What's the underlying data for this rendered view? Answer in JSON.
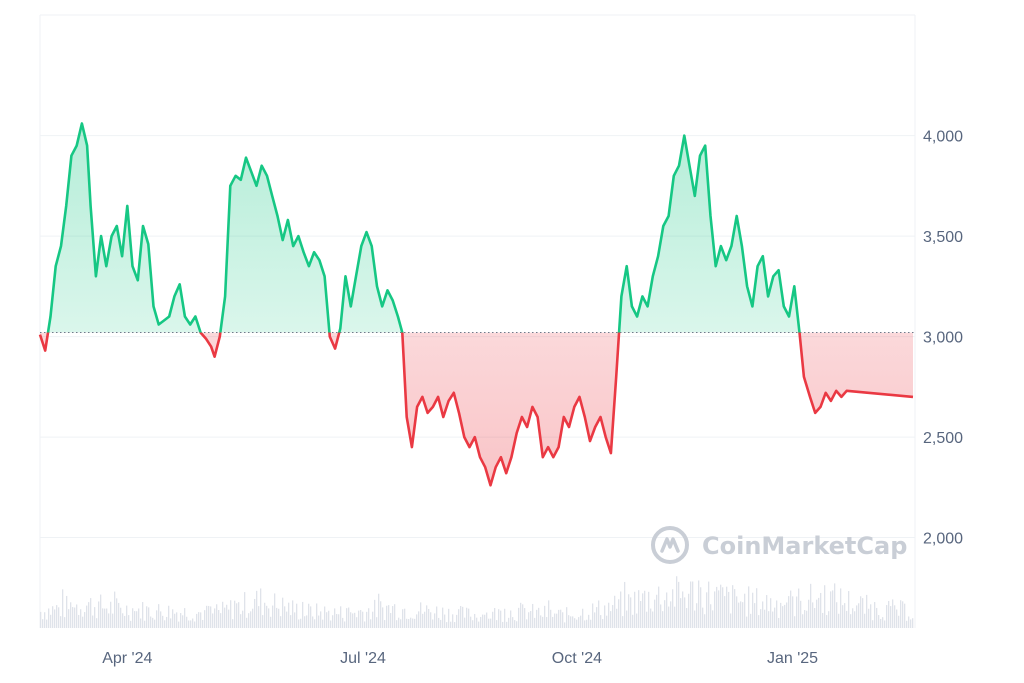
{
  "chart_data": {
    "type": "area",
    "baseline": 3020,
    "ylim": [
      1550,
      4600
    ],
    "y_ticks": [
      {
        "value": 2000,
        "label": "2,000"
      },
      {
        "value": 2500,
        "label": "2,500"
      },
      {
        "value": 3000,
        "label": "3,000"
      },
      {
        "value": 3500,
        "label": "3,500"
      },
      {
        "value": 4000,
        "label": "4,000"
      }
    ],
    "x_ticks": [
      {
        "t": 0.1,
        "label": "Apr '24"
      },
      {
        "t": 0.37,
        "label": "Jul '24"
      },
      {
        "t": 0.615,
        "label": "Oct '24"
      },
      {
        "t": 0.862,
        "label": "Jan '25"
      }
    ],
    "series_points": [
      [
        0.0,
        3010
      ],
      [
        0.006,
        2930
      ],
      [
        0.012,
        3100
      ],
      [
        0.018,
        3350
      ],
      [
        0.024,
        3450
      ],
      [
        0.03,
        3650
      ],
      [
        0.036,
        3900
      ],
      [
        0.042,
        3950
      ],
      [
        0.048,
        4060
      ],
      [
        0.054,
        3950
      ],
      [
        0.058,
        3650
      ],
      [
        0.064,
        3300
      ],
      [
        0.07,
        3500
      ],
      [
        0.076,
        3350
      ],
      [
        0.082,
        3500
      ],
      [
        0.088,
        3550
      ],
      [
        0.094,
        3400
      ],
      [
        0.1,
        3650
      ],
      [
        0.106,
        3350
      ],
      [
        0.112,
        3280
      ],
      [
        0.118,
        3550
      ],
      [
        0.124,
        3460
      ],
      [
        0.13,
        3150
      ],
      [
        0.136,
        3060
      ],
      [
        0.142,
        3080
      ],
      [
        0.148,
        3100
      ],
      [
        0.154,
        3200
      ],
      [
        0.16,
        3260
      ],
      [
        0.166,
        3100
      ],
      [
        0.172,
        3060
      ],
      [
        0.178,
        3100
      ],
      [
        0.184,
        3020
      ],
      [
        0.19,
        2990
      ],
      [
        0.196,
        2950
      ],
      [
        0.2,
        2900
      ],
      [
        0.206,
        3000
      ],
      [
        0.212,
        3200
      ],
      [
        0.218,
        3750
      ],
      [
        0.224,
        3800
      ],
      [
        0.23,
        3780
      ],
      [
        0.236,
        3890
      ],
      [
        0.242,
        3820
      ],
      [
        0.248,
        3750
      ],
      [
        0.254,
        3850
      ],
      [
        0.26,
        3800
      ],
      [
        0.266,
        3700
      ],
      [
        0.272,
        3600
      ],
      [
        0.278,
        3480
      ],
      [
        0.284,
        3580
      ],
      [
        0.29,
        3450
      ],
      [
        0.296,
        3500
      ],
      [
        0.302,
        3420
      ],
      [
        0.308,
        3350
      ],
      [
        0.314,
        3420
      ],
      [
        0.32,
        3380
      ],
      [
        0.326,
        3300
      ],
      [
        0.332,
        3000
      ],
      [
        0.338,
        2940
      ],
      [
        0.344,
        3040
      ],
      [
        0.35,
        3300
      ],
      [
        0.356,
        3150
      ],
      [
        0.362,
        3300
      ],
      [
        0.368,
        3450
      ],
      [
        0.374,
        3520
      ],
      [
        0.38,
        3450
      ],
      [
        0.386,
        3250
      ],
      [
        0.392,
        3150
      ],
      [
        0.398,
        3230
      ],
      [
        0.404,
        3180
      ],
      [
        0.41,
        3100
      ],
      [
        0.415,
        3020
      ],
      [
        0.42,
        2600
      ],
      [
        0.426,
        2450
      ],
      [
        0.432,
        2650
      ],
      [
        0.438,
        2700
      ],
      [
        0.444,
        2620
      ],
      [
        0.45,
        2650
      ],
      [
        0.456,
        2700
      ],
      [
        0.462,
        2600
      ],
      [
        0.468,
        2680
      ],
      [
        0.474,
        2720
      ],
      [
        0.48,
        2620
      ],
      [
        0.486,
        2500
      ],
      [
        0.492,
        2450
      ],
      [
        0.498,
        2500
      ],
      [
        0.504,
        2400
      ],
      [
        0.51,
        2350
      ],
      [
        0.516,
        2260
      ],
      [
        0.522,
        2350
      ],
      [
        0.528,
        2400
      ],
      [
        0.534,
        2320
      ],
      [
        0.54,
        2400
      ],
      [
        0.546,
        2520
      ],
      [
        0.552,
        2600
      ],
      [
        0.558,
        2550
      ],
      [
        0.564,
        2650
      ],
      [
        0.57,
        2600
      ],
      [
        0.576,
        2400
      ],
      [
        0.582,
        2450
      ],
      [
        0.588,
        2400
      ],
      [
        0.594,
        2450
      ],
      [
        0.6,
        2600
      ],
      [
        0.606,
        2550
      ],
      [
        0.612,
        2650
      ],
      [
        0.618,
        2700
      ],
      [
        0.624,
        2600
      ],
      [
        0.63,
        2480
      ],
      [
        0.636,
        2550
      ],
      [
        0.642,
        2600
      ],
      [
        0.648,
        2500
      ],
      [
        0.654,
        2420
      ],
      [
        0.66,
        2800
      ],
      [
        0.666,
        3200
      ],
      [
        0.672,
        3350
      ],
      [
        0.678,
        3150
      ],
      [
        0.684,
        3100
      ],
      [
        0.69,
        3200
      ],
      [
        0.696,
        3150
      ],
      [
        0.702,
        3300
      ],
      [
        0.708,
        3400
      ],
      [
        0.714,
        3550
      ],
      [
        0.72,
        3600
      ],
      [
        0.726,
        3800
      ],
      [
        0.732,
        3850
      ],
      [
        0.738,
        4000
      ],
      [
        0.744,
        3850
      ],
      [
        0.75,
        3700
      ],
      [
        0.756,
        3900
      ],
      [
        0.762,
        3950
      ],
      [
        0.768,
        3600
      ],
      [
        0.774,
        3350
      ],
      [
        0.78,
        3450
      ],
      [
        0.786,
        3380
      ],
      [
        0.792,
        3450
      ],
      [
        0.798,
        3600
      ],
      [
        0.804,
        3450
      ],
      [
        0.81,
        3250
      ],
      [
        0.816,
        3150
      ],
      [
        0.822,
        3350
      ],
      [
        0.828,
        3400
      ],
      [
        0.834,
        3200
      ],
      [
        0.84,
        3300
      ],
      [
        0.846,
        3330
      ],
      [
        0.852,
        3150
      ],
      [
        0.858,
        3100
      ],
      [
        0.864,
        3250
      ],
      [
        0.87,
        3020
      ],
      [
        0.875,
        2800
      ],
      [
        0.882,
        2700
      ],
      [
        0.888,
        2620
      ],
      [
        0.894,
        2650
      ],
      [
        0.9,
        2720
      ],
      [
        0.906,
        2680
      ],
      [
        0.912,
        2730
      ],
      [
        0.918,
        2700
      ],
      [
        0.924,
        2730
      ],
      [
        1.0,
        2700
      ]
    ],
    "volume": [
      [
        0.0,
        1640
      ],
      [
        0.05,
        1680
      ],
      [
        0.1,
        1650
      ],
      [
        0.15,
        1640
      ],
      [
        0.2,
        1630
      ],
      [
        0.25,
        1700
      ],
      [
        0.3,
        1640
      ],
      [
        0.35,
        1630
      ],
      [
        0.4,
        1660
      ],
      [
        0.45,
        1640
      ],
      [
        0.5,
        1620
      ],
      [
        0.55,
        1640
      ],
      [
        0.6,
        1620
      ],
      [
        0.65,
        1660
      ],
      [
        0.7,
        1720
      ],
      [
        0.75,
        1740
      ],
      [
        0.8,
        1700
      ],
      [
        0.85,
        1680
      ],
      [
        0.9,
        1720
      ],
      [
        0.95,
        1660
      ],
      [
        1.0,
        1640
      ]
    ],
    "colors": {
      "up": "#16c784",
      "down": "#ea3943",
      "up_fill": "#16c784",
      "down_fill": "#ea3943"
    }
  },
  "watermark": {
    "text": "CoinMarketCap",
    "icon": "coinmarketcap-logo-icon"
  }
}
